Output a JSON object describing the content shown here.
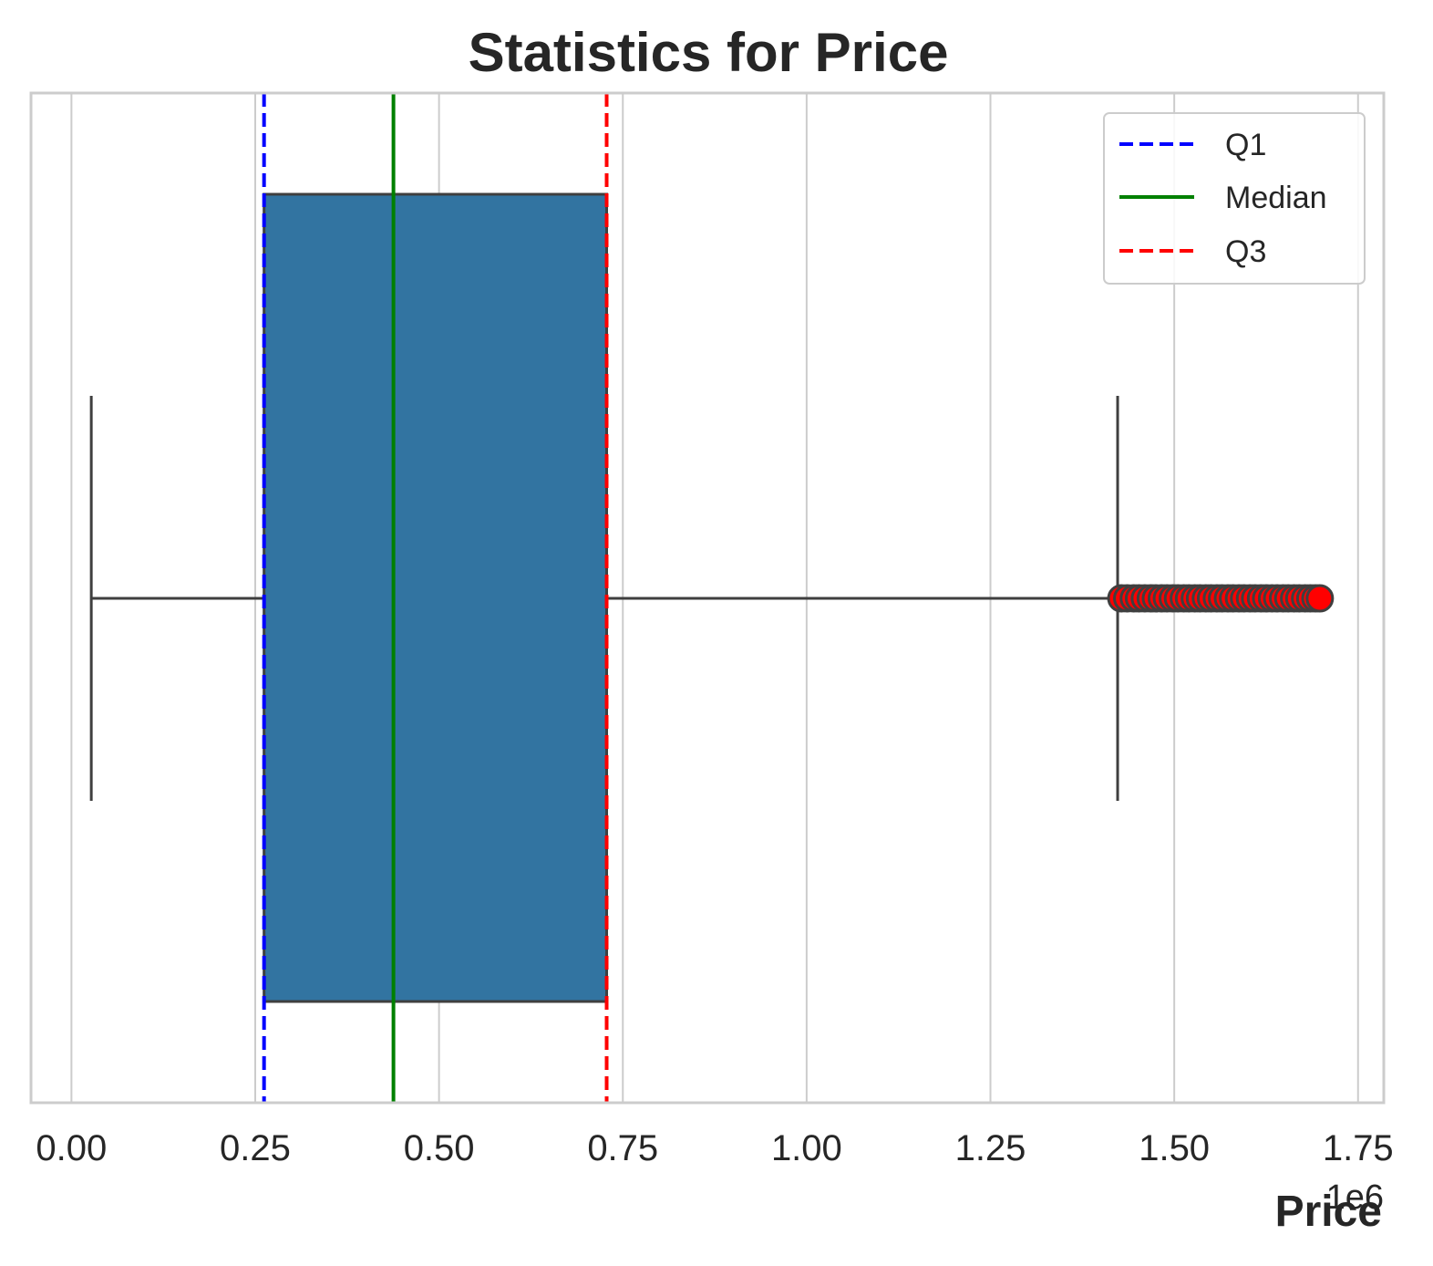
{
  "chart_data": {
    "type": "box",
    "orientation": "horizontal",
    "title": "Statistics for Price",
    "xlabel": "Price",
    "ylabel": "",
    "x_offset_label": "1e6",
    "xlim": [
      -0.055,
      1.785
    ],
    "x_ticks": [
      0.0,
      0.25,
      0.5,
      0.75,
      1.0,
      1.25,
      1.5,
      1.75
    ],
    "x_tick_labels": [
      "0.00",
      "0.25",
      "0.50",
      "0.75",
      "1.00",
      "1.25",
      "1.50",
      "1.75"
    ],
    "grid": "vertical",
    "legend_position": "top-right",
    "box": {
      "whisker_low": 0.027,
      "q1": 0.262,
      "median": 0.438,
      "q3": 0.728,
      "whisker_high": 1.423,
      "fill_color": "#3274a1",
      "edge_color": "#3f3f3f"
    },
    "outliers": [
      1.428,
      1.436,
      1.445,
      1.452,
      1.46,
      1.468,
      1.475,
      1.483,
      1.49,
      1.498,
      1.505,
      1.513,
      1.52,
      1.528,
      1.535,
      1.543,
      1.55,
      1.558,
      1.565,
      1.573,
      1.58,
      1.588,
      1.595,
      1.603,
      1.61,
      1.618,
      1.625,
      1.633,
      1.64,
      1.648,
      1.655,
      1.663,
      1.67,
      1.678,
      1.685,
      1.692,
      1.698
    ],
    "outlier_color": "#ff0000",
    "outlier_edge_color": "#3f3f3f",
    "reference_lines": [
      {
        "name": "Q1",
        "value": 0.262,
        "color": "#0000ff",
        "style": "dashed"
      },
      {
        "name": "Median",
        "value": 0.438,
        "color": "#008000",
        "style": "solid"
      },
      {
        "name": "Q3",
        "value": 0.728,
        "color": "#ff0000",
        "style": "dashed"
      }
    ]
  }
}
